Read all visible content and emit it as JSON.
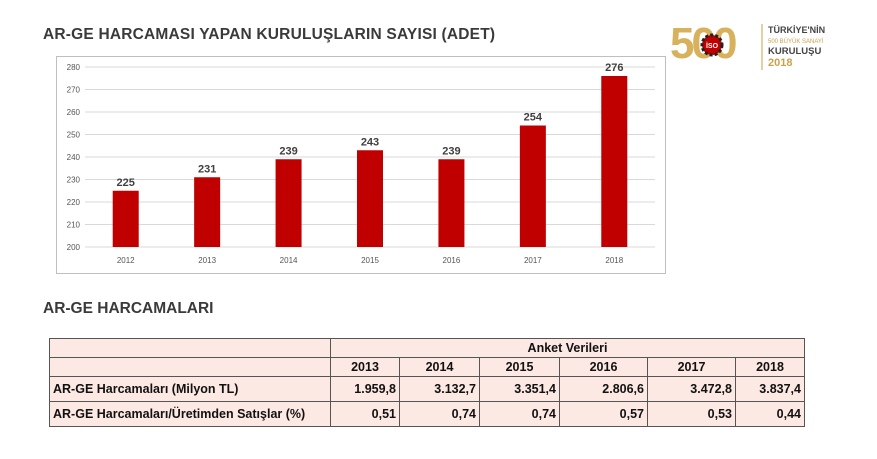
{
  "page": {
    "title": "AR-GE HARCAMASI YAPAN KURULUŞLARIN SAYISI (ADET)",
    "section_title": "AR-GE HARCAMALARI"
  },
  "logo": {
    "number": "500",
    "emblem": "İSO",
    "line1": "TÜRKİYE'NİN",
    "line2": "500 BÜYÜK SANAYİ",
    "line3": "KURULUŞU",
    "year": "2018"
  },
  "chart_data": {
    "type": "bar",
    "title": "AR-GE HARCAMASI YAPAN KURULUŞLARIN SAYISI (ADET)",
    "categories": [
      "2012",
      "2013",
      "2014",
      "2015",
      "2016",
      "2017",
      "2018"
    ],
    "values": [
      225,
      231,
      239,
      243,
      239,
      254,
      276
    ],
    "ylim": [
      200,
      280
    ],
    "yticks": [
      200,
      210,
      220,
      230,
      240,
      250,
      260,
      270,
      280
    ],
    "grid": true,
    "legend": "none",
    "colors": {
      "bar": "#c00000",
      "grid": "#d9d9d9"
    }
  },
  "table": {
    "group_header": "Anket Verileri",
    "years": [
      "2013",
      "2014",
      "2015",
      "2016",
      "2017",
      "2018"
    ],
    "rows": [
      {
        "label": "AR-GE Harcamaları (Milyon TL)",
        "values": [
          "1.959,8",
          "3.132,7",
          "3.351,4",
          "2.806,6",
          "3.472,8",
          "3.837,4"
        ]
      },
      {
        "label": "AR-GE Harcamaları/Üretimden Satışlar (%)",
        "values": [
          "0,51",
          "0,74",
          "0,74",
          "0,57",
          "0,53",
          "0,44"
        ]
      }
    ]
  }
}
